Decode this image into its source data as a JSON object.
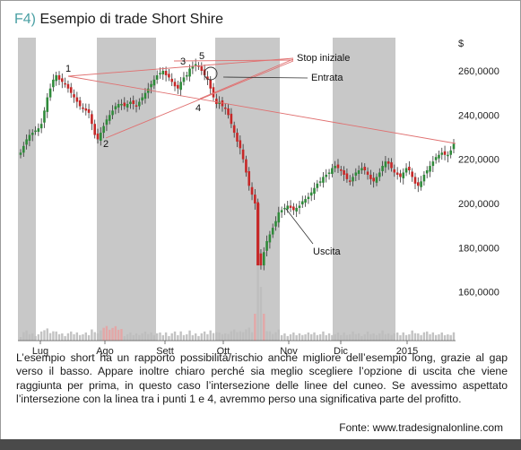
{
  "header": {
    "tag": "F4)",
    "title": "Esempio di trade Short Shire"
  },
  "caption": "L’esempio short ha un rapporto possibilità/rischio anche migliore dell’esempio long, grazie al gap verso il basso. Appare inoltre chiaro perché sia meglio scegliere l’opzione di uscita che viene raggiunta per prima, in questo caso l’intersezione delle linee del cuneo. Se avessimo aspettato l’intersezione con la linea tra i punti 1 e 4, avremmo perso una significativa parte del profitto.",
  "source": "Fonte: www.tradesignalonline.com",
  "colors": {
    "up": "#2f8a3a",
    "down": "#c62828",
    "band": "#c8c8c8",
    "trend": "#e07070",
    "volume": "#bdbdbd",
    "volume_hi": "#e6a3a3"
  },
  "chart_data": {
    "type": "candlestick",
    "currency_label": "$",
    "ylim": [
      140,
      275
    ],
    "y_ticks": [
      {
        "value": 160,
        "label": "160,0000"
      },
      {
        "value": 180,
        "label": "180,0000"
      },
      {
        "value": 200,
        "label": "200,0000"
      },
      {
        "value": 220,
        "label": "220,0000"
      },
      {
        "value": 240,
        "label": "240,0000"
      },
      {
        "value": 260,
        "label": "260,0000"
      }
    ],
    "month_labels": [
      "Lug",
      "Ago",
      "Sett",
      "Ott",
      "Nov",
      "Dic",
      "2015"
    ],
    "pivot_points": [
      {
        "label": "1",
        "value": 258
      },
      {
        "label": "2",
        "value": 229
      },
      {
        "label": "3",
        "value": 260
      },
      {
        "label": "4",
        "value": 252
      },
      {
        "label": "5",
        "value": 264
      }
    ],
    "annotations": [
      "Stop iniziale",
      "Entrata",
      "Uscita"
    ],
    "series_close": [
      223,
      226,
      229,
      231,
      232,
      233,
      234,
      236,
      242,
      248,
      252,
      256,
      258,
      256,
      255,
      254,
      252,
      250,
      248,
      246,
      244,
      243,
      242,
      241,
      236,
      231,
      229,
      232,
      235,
      238,
      240,
      242,
      244,
      245,
      245,
      244,
      245,
      246,
      245,
      244,
      246,
      248,
      250,
      252,
      254,
      256,
      258,
      259,
      260,
      258,
      257,
      255,
      253,
      252,
      255,
      257,
      258,
      261,
      262,
      263,
      262,
      260,
      258,
      256,
      252,
      248,
      245,
      246,
      244,
      243,
      240,
      236,
      232,
      228,
      225,
      220,
      214,
      208,
      204,
      200,
      178,
      172,
      178,
      183,
      186,
      189,
      192,
      196,
      197,
      198,
      199,
      198,
      197,
      198,
      199,
      201,
      202,
      203,
      205,
      207,
      209,
      210,
      212,
      213,
      214,
      216,
      217,
      216,
      215,
      213,
      211,
      210,
      212,
      214,
      215,
      216,
      215,
      213,
      211,
      210,
      212,
      214,
      217,
      219,
      218,
      216,
      214,
      213,
      212,
      214,
      216,
      215,
      212,
      209,
      208,
      210,
      213,
      215,
      217,
      219,
      221,
      222,
      223,
      222,
      222,
      224,
      227
    ]
  }
}
